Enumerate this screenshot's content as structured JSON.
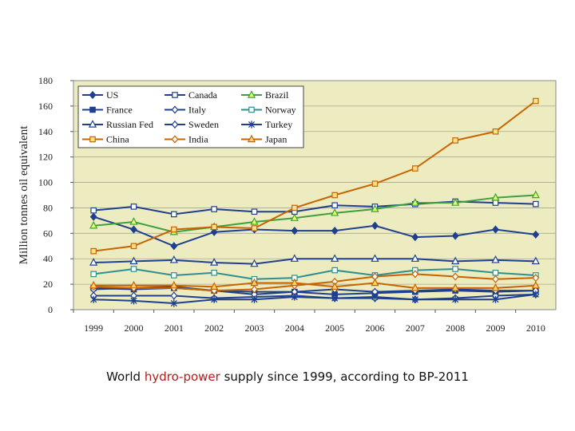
{
  "chart_data": {
    "type": "line",
    "ylabel": "Million tonnes oil equivalent",
    "xlabel": "",
    "ylim": [
      0,
      180
    ],
    "yticks": [
      0,
      20,
      40,
      60,
      80,
      100,
      120,
      140,
      160,
      180
    ],
    "categories": [
      "1999",
      "2000",
      "2001",
      "2002",
      "2003",
      "2004",
      "2005",
      "2006",
      "2007",
      "2008",
      "2009",
      "2010"
    ],
    "grid": "horizontal",
    "legend_position": "top-left",
    "plot_background": "#ececc0",
    "series": [
      {
        "name": "US",
        "color": "#1f3f8f",
        "marker": "diamond-filled",
        "values": [
          73,
          63,
          50,
          61,
          63,
          62,
          62,
          66,
          57,
          58,
          63,
          59
        ]
      },
      {
        "name": "Canada",
        "color": "#1f3f8f",
        "marker": "square-open",
        "values": [
          78,
          81,
          75,
          79,
          77,
          77,
          82,
          81,
          83,
          85,
          84,
          83
        ]
      },
      {
        "name": "Brazil",
        "color": "#3ea03e",
        "marker": "triangle-open",
        "values": [
          66,
          69,
          61,
          65,
          69,
          72,
          76,
          79,
          84,
          84,
          88,
          90
        ]
      },
      {
        "name": "France",
        "color": "#1f3f8f",
        "marker": "square-filled",
        "values": [
          17,
          16,
          17,
          15,
          14,
          14,
          12,
          13,
          14,
          15,
          14,
          15
        ]
      },
      {
        "name": "Italy",
        "color": "#1f3f8f",
        "marker": "diamond-open",
        "values": [
          11,
          11,
          11,
          9,
          10,
          11,
          9,
          9,
          8,
          9,
          11,
          12
        ]
      },
      {
        "name": "Norway",
        "color": "#2f8f8f",
        "marker": "square-open",
        "values": [
          28,
          32,
          27,
          29,
          24,
          25,
          31,
          27,
          31,
          32,
          29,
          27
        ]
      },
      {
        "name": "Russian Fed",
        "color": "#1f3f8f",
        "marker": "triangle-open",
        "values": [
          37,
          38,
          39,
          37,
          36,
          40,
          40,
          40,
          40,
          38,
          39,
          38
        ]
      },
      {
        "name": "Sweden",
        "color": "#1f3f8f",
        "marker": "diamond-open",
        "values": [
          16,
          17,
          18,
          15,
          12,
          14,
          16,
          14,
          15,
          16,
          15,
          15
        ]
      },
      {
        "name": "Turkey",
        "color": "#1f3f8f",
        "marker": "star",
        "values": [
          8,
          7,
          5,
          8,
          8,
          10,
          9,
          10,
          8,
          8,
          8,
          12
        ]
      },
      {
        "name": "China",
        "color": "#c86400",
        "marker": "square-open",
        "values": [
          46,
          50,
          63,
          65,
          64,
          80,
          90,
          99,
          111,
          133,
          140,
          164
        ]
      },
      {
        "name": "India",
        "color": "#c86400",
        "marker": "diamond-open",
        "values": [
          18,
          17,
          17,
          15,
          16,
          19,
          22,
          26,
          28,
          26,
          24,
          25
        ]
      },
      {
        "name": "Japan",
        "color": "#c86400",
        "marker": "triangle-open",
        "values": [
          19,
          19,
          19,
          18,
          21,
          21,
          18,
          21,
          17,
          17,
          17,
          19
        ]
      }
    ]
  },
  "caption": {
    "before": "World ",
    "highlight": "hydro-power",
    "after": " supply since 1999, according to BP-2011"
  }
}
